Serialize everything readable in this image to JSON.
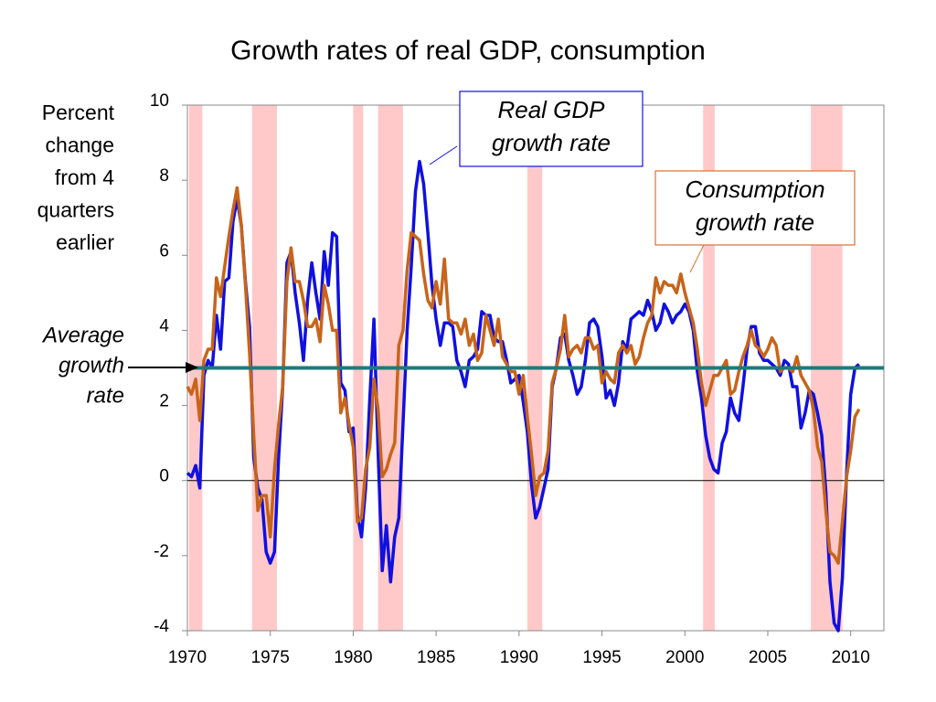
{
  "chart_data": {
    "type": "line",
    "title": "Growth rates of real GDP, consumption",
    "y_label": [
      "Percent",
      "change",
      "from 4",
      "quarters",
      "earlier"
    ],
    "average_label": [
      "Average",
      "growth",
      "rate"
    ],
    "average": 3,
    "average_color": "#1f7a7a",
    "recession_color": "#ffc9c9",
    "recessions": [
      [
        1970.1,
        1970.9
      ],
      [
        1973.9,
        1975.4
      ],
      [
        1980.0,
        1980.6
      ],
      [
        1981.5,
        1983.0
      ],
      [
        1990.5,
        1991.4
      ],
      [
        2001.1,
        2001.8
      ],
      [
        2007.6,
        2009.5
      ]
    ],
    "annotations": [
      {
        "text": [
          "Real GDP",
          "growth rate"
        ],
        "color": "#1010e0"
      },
      {
        "text": [
          "Consumption",
          "growth rate"
        ],
        "color": "#e07030"
      }
    ],
    "xlim": [
      1970,
      2012
    ],
    "xticks": [
      1970,
      1975,
      1980,
      1985,
      1990,
      1995,
      2000,
      2005,
      2010
    ],
    "ylim": [
      -4,
      10
    ],
    "yticks": [
      -4,
      -2,
      0,
      2,
      4,
      6,
      8,
      10
    ],
    "x": [
      1970,
      1970.25,
      1970.5,
      1970.75,
      1971,
      1971.25,
      1971.5,
      1971.75,
      1972,
      1972.25,
      1972.5,
      1972.75,
      1973,
      1973.25,
      1973.5,
      1973.75,
      1974,
      1974.25,
      1974.5,
      1974.75,
      1975,
      1975.25,
      1975.5,
      1975.75,
      1976,
      1976.25,
      1976.5,
      1976.75,
      1977,
      1977.25,
      1977.5,
      1977.75,
      1978,
      1978.25,
      1978.5,
      1978.75,
      1979,
      1979.25,
      1979.5,
      1979.75,
      1980,
      1980.25,
      1980.5,
      1980.75,
      1981,
      1981.25,
      1981.5,
      1981.75,
      1982,
      1982.25,
      1982.5,
      1982.75,
      1983,
      1983.25,
      1983.5,
      1983.75,
      1984,
      1984.25,
      1984.5,
      1984.75,
      1985,
      1985.25,
      1985.5,
      1985.75,
      1986,
      1986.25,
      1986.5,
      1986.75,
      1987,
      1987.25,
      1987.5,
      1987.75,
      1988,
      1988.25,
      1988.5,
      1988.75,
      1989,
      1989.25,
      1989.5,
      1989.75,
      1990,
      1990.25,
      1990.5,
      1990.75,
      1991,
      1991.25,
      1991.5,
      1991.75,
      1992,
      1992.25,
      1992.5,
      1992.75,
      1993,
      1993.25,
      1993.5,
      1993.75,
      1994,
      1994.25,
      1994.5,
      1994.75,
      1995,
      1995.25,
      1995.5,
      1995.75,
      1996,
      1996.25,
      1996.5,
      1996.75,
      1997,
      1997.25,
      1997.5,
      1997.75,
      1998,
      1998.25,
      1998.5,
      1998.75,
      1999,
      1999.25,
      1999.5,
      1999.75,
      2000,
      2000.25,
      2000.5,
      2000.75,
      2001,
      2001.25,
      2001.5,
      2001.75,
      2002,
      2002.25,
      2002.5,
      2002.75,
      2003,
      2003.25,
      2003.5,
      2003.75,
      2004,
      2004.25,
      2004.5,
      2004.75,
      2005,
      2005.25,
      2005.5,
      2005.75,
      2006,
      2006.25,
      2006.5,
      2006.75,
      2007,
      2007.25,
      2007.5,
      2007.75,
      2008,
      2008.25,
      2008.5,
      2008.75,
      2009,
      2009.25,
      2009.5,
      2009.75,
      2010,
      2010.25,
      2010.5
    ],
    "series": [
      {
        "color": "#1010e0",
        "values": [
          0.2,
          0.1,
          0.4,
          -0.2,
          2.8,
          3.2,
          3.0,
          4.4,
          3.5,
          5.3,
          5.4,
          6.9,
          7.5,
          6.8,
          5.3,
          4.1,
          0.6,
          -0.2,
          -0.5,
          -1.9,
          -2.2,
          -1.9,
          0.6,
          2.5,
          5.8,
          6.1,
          5.0,
          4.2,
          3.2,
          4.8,
          5.8,
          5.0,
          4.3,
          6.1,
          5.2,
          6.6,
          6.5,
          2.6,
          2.4,
          1.3,
          1.4,
          -0.9,
          -1.5,
          -0.2,
          2.2,
          4.3,
          0.8,
          -2.4,
          -1.2,
          -2.7,
          -1.5,
          -1.0,
          1.5,
          4.0,
          5.7,
          7.7,
          8.5,
          7.9,
          6.6,
          5.2,
          4.3,
          3.6,
          4.2,
          4.2,
          4.1,
          3.2,
          2.9,
          2.5,
          3.2,
          3.3,
          3.5,
          4.5,
          4.4,
          4.4,
          3.8,
          3.7,
          3.7,
          3.2,
          2.6,
          2.7,
          2.8,
          2.1,
          1.3,
          -0.1,
          -1.0,
          -0.7,
          -0.2,
          0.3,
          2.5,
          3.0,
          3.8,
          3.9,
          3.2,
          2.8,
          2.3,
          2.5,
          3.2,
          4.2,
          4.3,
          4.1,
          3.3,
          2.2,
          2.4,
          2.0,
          2.6,
          3.7,
          3.5,
          4.3,
          4.4,
          4.5,
          4.4,
          4.8,
          4.5,
          4.0,
          4.2,
          4.7,
          4.5,
          4.2,
          4.4,
          4.5,
          4.7,
          4.5,
          4.0,
          2.9,
          2.2,
          1.2,
          0.6,
          0.3,
          0.2,
          1.0,
          1.3,
          2.2,
          1.8,
          1.6,
          2.5,
          3.5,
          4.1,
          4.1,
          3.4,
          3.2,
          3.2,
          3.1,
          3.0,
          2.8,
          3.2,
          3.1,
          2.5,
          2.5,
          1.4,
          1.8,
          2.4,
          2.3,
          1.8,
          1.2,
          -0.3,
          -2.7,
          -3.8,
          -4.0,
          -2.6,
          0.2,
          2.3,
          3.0,
          3.1
        ]
      },
      {
        "color": "#c8641a",
        "values": [
          2.5,
          2.3,
          2.7,
          1.6,
          3.2,
          3.5,
          3.5,
          5.4,
          4.9,
          5.7,
          6.5,
          7.2,
          7.8,
          6.8,
          5.2,
          3.4,
          1.2,
          -0.8,
          -0.4,
          -0.4,
          -1.5,
          0.3,
          1.5,
          2.5,
          5.3,
          6.2,
          5.3,
          5.3,
          4.8,
          4.1,
          4.1,
          4.3,
          3.7,
          5.2,
          4.7,
          4.0,
          4.0,
          1.8,
          2.2,
          1.5,
          0.9,
          -1.1,
          -1.0,
          0.3,
          0.9,
          2.7,
          1.9,
          0.1,
          0.3,
          0.7,
          1.0,
          3.6,
          4.0,
          5.6,
          6.6,
          6.5,
          6.4,
          5.5,
          4.8,
          4.6,
          5.3,
          4.7,
          5.9,
          4.3,
          4.2,
          4.2,
          3.9,
          4.3,
          3.6,
          3.9,
          3.2,
          3.4,
          4.4,
          4.0,
          3.6,
          4.3,
          3.3,
          3.1,
          2.9,
          2.9,
          2.3,
          2.8,
          1.7,
          0.7,
          -0.4,
          0.1,
          0.2,
          0.8,
          2.6,
          3.0,
          3.5,
          4.4,
          3.3,
          3.5,
          3.6,
          3.4,
          3.8,
          3.8,
          3.5,
          3.6,
          2.6,
          2.9,
          2.7,
          2.6,
          3.4,
          3.6,
          3.4,
          3.6,
          3.1,
          3.3,
          3.8,
          4.2,
          4.4,
          5.4,
          5.0,
          5.3,
          5.2,
          5.2,
          5.0,
          5.5,
          5.0,
          4.6,
          4.2,
          3.5,
          2.6,
          2.0,
          2.4,
          2.8,
          2.8,
          3.0,
          3.2,
          2.3,
          2.4,
          2.9,
          3.3,
          3.6,
          4.0,
          3.6,
          3.5,
          3.3,
          3.5,
          3.8,
          3.6,
          2.9,
          3.0,
          3.0,
          2.9,
          3.3,
          2.8,
          2.6,
          2.4,
          1.9,
          0.9,
          0.5,
          -0.8,
          -1.9,
          -2.0,
          -2.2,
          -1.1,
          0.1,
          0.8,
          1.7,
          1.9
        ]
      }
    ]
  }
}
